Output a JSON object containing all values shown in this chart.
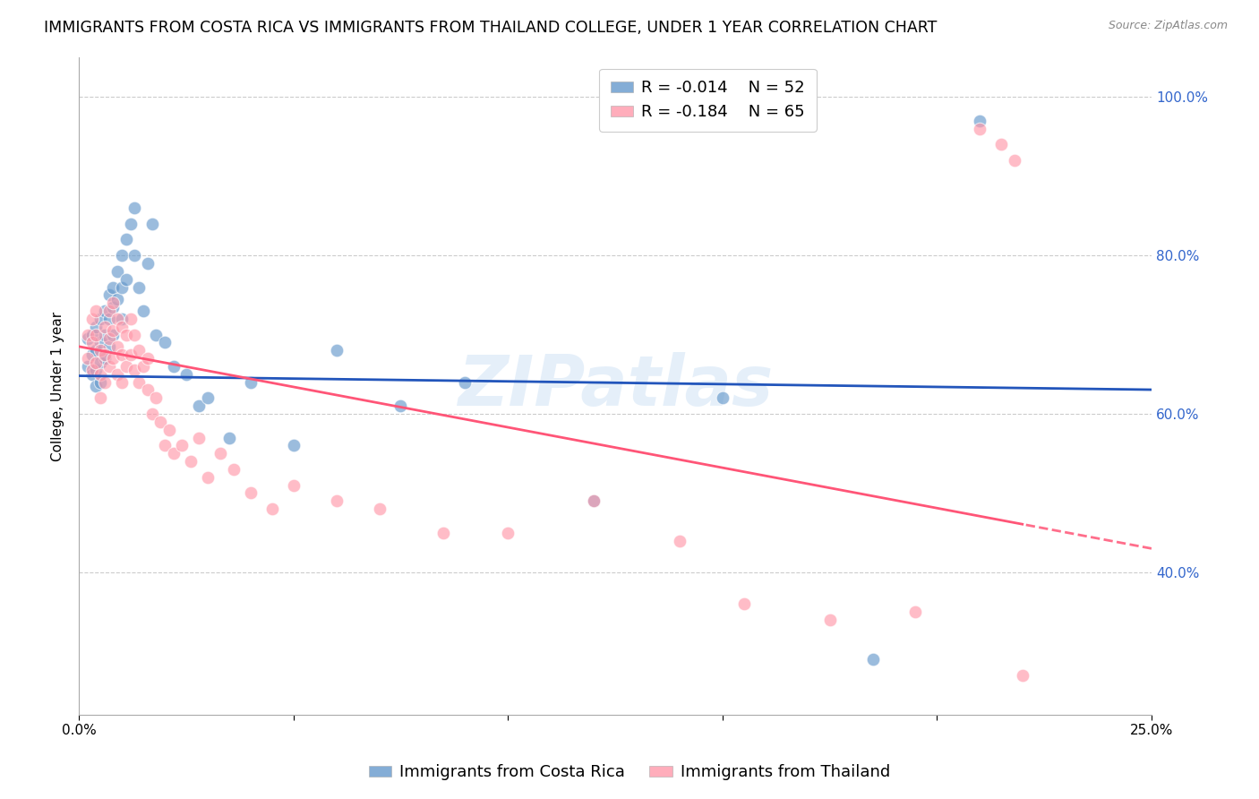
{
  "title": "IMMIGRANTS FROM COSTA RICA VS IMMIGRANTS FROM THAILAND COLLEGE, UNDER 1 YEAR CORRELATION CHART",
  "source": "Source: ZipAtlas.com",
  "ylabel": "College, Under 1 year",
  "xlim": [
    0.0,
    0.25
  ],
  "ylim": [
    0.22,
    1.05
  ],
  "legend_r1": "R = -0.014",
  "legend_n1": "N = 52",
  "legend_r2": "R = -0.184",
  "legend_n2": "N = 65",
  "label1": "Immigrants from Costa Rica",
  "label2": "Immigrants from Thailand",
  "color1": "#6699CC",
  "color2": "#FF99AA",
  "trend_color1": "#2255BB",
  "trend_color2": "#FF5577",
  "watermark": "ZIPatlas",
  "costa_rica_x": [
    0.002,
    0.002,
    0.003,
    0.003,
    0.003,
    0.004,
    0.004,
    0.004,
    0.004,
    0.005,
    0.005,
    0.005,
    0.005,
    0.006,
    0.006,
    0.006,
    0.007,
    0.007,
    0.007,
    0.008,
    0.008,
    0.008,
    0.009,
    0.009,
    0.01,
    0.01,
    0.01,
    0.011,
    0.011,
    0.012,
    0.013,
    0.013,
    0.014,
    0.015,
    0.016,
    0.017,
    0.018,
    0.02,
    0.022,
    0.025,
    0.028,
    0.03,
    0.035,
    0.04,
    0.05,
    0.06,
    0.075,
    0.09,
    0.12,
    0.15,
    0.185,
    0.21
  ],
  "costa_rica_y": [
    0.695,
    0.66,
    0.7,
    0.675,
    0.65,
    0.71,
    0.68,
    0.655,
    0.635,
    0.72,
    0.69,
    0.665,
    0.64,
    0.73,
    0.7,
    0.67,
    0.75,
    0.72,
    0.685,
    0.76,
    0.735,
    0.7,
    0.78,
    0.745,
    0.8,
    0.76,
    0.72,
    0.82,
    0.77,
    0.84,
    0.86,
    0.8,
    0.76,
    0.73,
    0.79,
    0.84,
    0.7,
    0.69,
    0.66,
    0.65,
    0.61,
    0.62,
    0.57,
    0.64,
    0.56,
    0.68,
    0.61,
    0.64,
    0.49,
    0.62,
    0.29,
    0.97
  ],
  "thailand_x": [
    0.002,
    0.002,
    0.003,
    0.003,
    0.003,
    0.004,
    0.004,
    0.004,
    0.005,
    0.005,
    0.005,
    0.006,
    0.006,
    0.006,
    0.007,
    0.007,
    0.007,
    0.008,
    0.008,
    0.008,
    0.009,
    0.009,
    0.009,
    0.01,
    0.01,
    0.01,
    0.011,
    0.011,
    0.012,
    0.012,
    0.013,
    0.013,
    0.014,
    0.014,
    0.015,
    0.016,
    0.016,
    0.017,
    0.018,
    0.019,
    0.02,
    0.021,
    0.022,
    0.024,
    0.026,
    0.028,
    0.03,
    0.033,
    0.036,
    0.04,
    0.045,
    0.05,
    0.06,
    0.07,
    0.085,
    0.1,
    0.12,
    0.14,
    0.155,
    0.175,
    0.195,
    0.21,
    0.215,
    0.218,
    0.22
  ],
  "thailand_y": [
    0.7,
    0.67,
    0.72,
    0.69,
    0.655,
    0.73,
    0.7,
    0.665,
    0.68,
    0.65,
    0.62,
    0.71,
    0.675,
    0.64,
    0.73,
    0.695,
    0.66,
    0.74,
    0.705,
    0.67,
    0.72,
    0.685,
    0.65,
    0.71,
    0.675,
    0.64,
    0.7,
    0.66,
    0.72,
    0.675,
    0.7,
    0.655,
    0.68,
    0.64,
    0.66,
    0.67,
    0.63,
    0.6,
    0.62,
    0.59,
    0.56,
    0.58,
    0.55,
    0.56,
    0.54,
    0.57,
    0.52,
    0.55,
    0.53,
    0.5,
    0.48,
    0.51,
    0.49,
    0.48,
    0.45,
    0.45,
    0.49,
    0.44,
    0.36,
    0.34,
    0.35,
    0.96,
    0.94,
    0.92,
    0.27
  ],
  "grid_color": "#CCCCCC",
  "bg_color": "#FFFFFF",
  "title_fontsize": 12.5,
  "axis_label_fontsize": 11,
  "tick_fontsize": 11,
  "legend_fontsize": 13
}
